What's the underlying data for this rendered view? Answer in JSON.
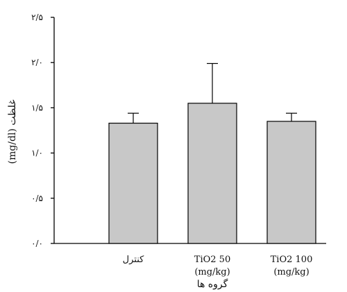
{
  "chart_data": {
    "type": "bar",
    "title": "",
    "xlabel": "گروه ها",
    "ylabel": "غلظت (mg/dl)",
    "categories": [
      [
        "کنترل"
      ],
      [
        "TiO2 50",
        "(mg/kg)"
      ],
      [
        "TiO2 100",
        "(mg/kg)"
      ]
    ],
    "values": [
      1.33,
      1.55,
      1.35
    ],
    "errors": [
      0.11,
      0.44,
      0.09
    ],
    "ylim": [
      0,
      2.5
    ],
    "yticks": [
      0,
      0.5,
      1.0,
      1.5,
      2.0,
      2.5
    ],
    "ytick_labels": [
      "۰/۰",
      "۰/۵",
      "۱/۰",
      "۱/۵",
      "۲/۰",
      "۲/۵"
    ],
    "bar_color": "#c8c8c8",
    "bar_edge_color": "#000000",
    "grid": false,
    "legend": "none"
  }
}
